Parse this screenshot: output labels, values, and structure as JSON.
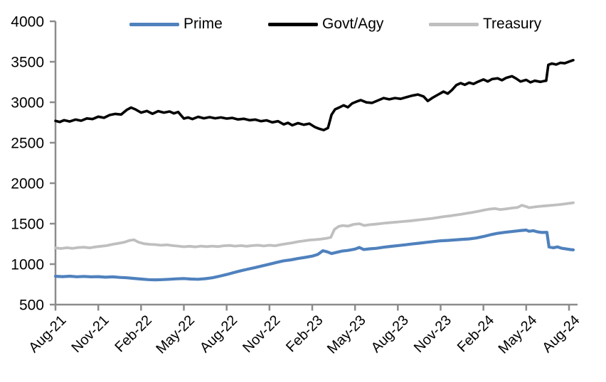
{
  "chart_data": {
    "type": "line",
    "title": "",
    "xlabel": "",
    "ylabel": "",
    "x_unit": "months since Aug-2021 (quarterly ticks)",
    "x_tick_labels": [
      "Aug-21",
      "Nov-21",
      "Feb-22",
      "May-22",
      "Aug-22",
      "Nov-22",
      "Feb-23",
      "May-23",
      "Aug-23",
      "Nov-23",
      "Feb-24",
      "May-24",
      "Aug-24"
    ],
    "y_ticks": [
      500,
      1000,
      1500,
      2000,
      2500,
      3000,
      3500,
      4000
    ],
    "ylim": [
      500,
      4000
    ],
    "grid": false,
    "legend_position": "top",
    "axis_color": "#8c8c8c",
    "tick_label_color": "#000000",
    "series": [
      {
        "name": "Prime",
        "color": "#4F81BD",
        "stroke_width": 4.2,
        "points": [
          [
            0,
            850
          ],
          [
            0.5,
            846
          ],
          [
            1,
            851
          ],
          [
            1.5,
            844
          ],
          [
            2,
            848
          ],
          [
            2.5,
            843
          ],
          [
            3,
            846
          ],
          [
            3.5,
            839
          ],
          [
            4,
            843
          ],
          [
            4.5,
            836
          ],
          [
            5,
            832
          ],
          [
            5.5,
            824
          ],
          [
            6,
            816
          ],
          [
            6.5,
            809
          ],
          [
            7,
            806
          ],
          [
            7.5,
            809
          ],
          [
            8,
            813
          ],
          [
            8.5,
            818
          ],
          [
            9,
            822
          ],
          [
            9.5,
            816
          ],
          [
            10,
            813
          ],
          [
            10.5,
            820
          ],
          [
            11,
            832
          ],
          [
            11.5,
            851
          ],
          [
            12,
            872
          ],
          [
            12.5,
            896
          ],
          [
            13,
            918
          ],
          [
            13.5,
            939
          ],
          [
            14,
            958
          ],
          [
            14.5,
            979
          ],
          [
            15,
            999
          ],
          [
            15.5,
            1021
          ],
          [
            16,
            1041
          ],
          [
            16.5,
            1053
          ],
          [
            17,
            1069
          ],
          [
            17.5,
            1083
          ],
          [
            18,
            1099
          ],
          [
            18.4,
            1121
          ],
          [
            18.75,
            1166
          ],
          [
            19.05,
            1152
          ],
          [
            19.35,
            1131
          ],
          [
            19.7,
            1146
          ],
          [
            20.1,
            1161
          ],
          [
            20.5,
            1169
          ],
          [
            21,
            1186
          ],
          [
            21.3,
            1206
          ],
          [
            21.6,
            1181
          ],
          [
            22,
            1189
          ],
          [
            22.5,
            1196
          ],
          [
            23,
            1209
          ],
          [
            23.5,
            1219
          ],
          [
            24,
            1229
          ],
          [
            24.5,
            1239
          ],
          [
            25,
            1249
          ],
          [
            25.5,
            1259
          ],
          [
            26,
            1269
          ],
          [
            26.5,
            1279
          ],
          [
            27,
            1289
          ],
          [
            27.5,
            1293
          ],
          [
            28,
            1299
          ],
          [
            28.5,
            1306
          ],
          [
            29,
            1311
          ],
          [
            29.5,
            1323
          ],
          [
            30,
            1341
          ],
          [
            30.5,
            1363
          ],
          [
            31,
            1381
          ],
          [
            31.5,
            1393
          ],
          [
            32,
            1403
          ],
          [
            32.5,
            1413
          ],
          [
            33,
            1421
          ],
          [
            33.2,
            1406
          ],
          [
            33.5,
            1413
          ],
          [
            33.8,
            1398
          ],
          [
            34.1,
            1391
          ],
          [
            34.45,
            1393
          ],
          [
            34.6,
            1212
          ],
          [
            34.9,
            1203
          ],
          [
            35.2,
            1213
          ],
          [
            35.5,
            1196
          ],
          [
            35.8,
            1188
          ],
          [
            36.1,
            1180
          ],
          [
            36.3,
            1176
          ]
        ]
      },
      {
        "name": "Govt/Agy",
        "color": "#000000",
        "stroke_width": 3.6,
        "points": [
          [
            0,
            2770
          ],
          [
            0.3,
            2756
          ],
          [
            0.6,
            2778
          ],
          [
            1,
            2762
          ],
          [
            1.4,
            2786
          ],
          [
            1.8,
            2772
          ],
          [
            2.2,
            2800
          ],
          [
            2.6,
            2792
          ],
          [
            3,
            2822
          ],
          [
            3.4,
            2808
          ],
          [
            3.8,
            2842
          ],
          [
            4.2,
            2856
          ],
          [
            4.6,
            2848
          ],
          [
            5,
            2906
          ],
          [
            5.3,
            2934
          ],
          [
            5.6,
            2912
          ],
          [
            6,
            2872
          ],
          [
            6.4,
            2892
          ],
          [
            6.8,
            2858
          ],
          [
            7.2,
            2890
          ],
          [
            7.6,
            2872
          ],
          [
            8,
            2886
          ],
          [
            8.3,
            2862
          ],
          [
            8.6,
            2880
          ],
          [
            9,
            2798
          ],
          [
            9.3,
            2812
          ],
          [
            9.6,
            2792
          ],
          [
            10,
            2820
          ],
          [
            10.4,
            2802
          ],
          [
            10.8,
            2816
          ],
          [
            11.2,
            2802
          ],
          [
            11.6,
            2812
          ],
          [
            12,
            2798
          ],
          [
            12.4,
            2806
          ],
          [
            12.8,
            2788
          ],
          [
            13.2,
            2796
          ],
          [
            13.6,
            2778
          ],
          [
            14,
            2786
          ],
          [
            14.4,
            2766
          ],
          [
            14.8,
            2776
          ],
          [
            15.2,
            2752
          ],
          [
            15.6,
            2766
          ],
          [
            16,
            2726
          ],
          [
            16.3,
            2746
          ],
          [
            16.6,
            2716
          ],
          [
            17,
            2742
          ],
          [
            17.4,
            2722
          ],
          [
            17.8,
            2736
          ],
          [
            18.2,
            2692
          ],
          [
            18.5,
            2672
          ],
          [
            18.8,
            2656
          ],
          [
            19.1,
            2682
          ],
          [
            19.35,
            2846
          ],
          [
            19.6,
            2912
          ],
          [
            19.9,
            2936
          ],
          [
            20.2,
            2962
          ],
          [
            20.5,
            2938
          ],
          [
            20.8,
            2986
          ],
          [
            21.1,
            3008
          ],
          [
            21.4,
            3026
          ],
          [
            21.8,
            2998
          ],
          [
            22.2,
            2992
          ],
          [
            22.6,
            3022
          ],
          [
            23,
            3052
          ],
          [
            23.4,
            3036
          ],
          [
            23.8,
            3052
          ],
          [
            24.2,
            3042
          ],
          [
            24.6,
            3062
          ],
          [
            25,
            3082
          ],
          [
            25.4,
            3096
          ],
          [
            25.8,
            3072
          ],
          [
            26.1,
            3016
          ],
          [
            26.4,
            3052
          ],
          [
            26.8,
            3092
          ],
          [
            27.2,
            3132
          ],
          [
            27.5,
            3106
          ],
          [
            27.8,
            3152
          ],
          [
            28.1,
            3212
          ],
          [
            28.4,
            3236
          ],
          [
            28.7,
            3216
          ],
          [
            29,
            3242
          ],
          [
            29.3,
            3226
          ],
          [
            29.6,
            3252
          ],
          [
            30,
            3282
          ],
          [
            30.3,
            3256
          ],
          [
            30.6,
            3286
          ],
          [
            31,
            3296
          ],
          [
            31.3,
            3272
          ],
          [
            31.6,
            3302
          ],
          [
            32,
            3322
          ],
          [
            32.3,
            3292
          ],
          [
            32.6,
            3256
          ],
          [
            33,
            3276
          ],
          [
            33.3,
            3246
          ],
          [
            33.6,
            3266
          ],
          [
            34,
            3252
          ],
          [
            34.25,
            3262
          ],
          [
            34.4,
            3266
          ],
          [
            34.55,
            3462
          ],
          [
            34.8,
            3478
          ],
          [
            35.1,
            3466
          ],
          [
            35.4,
            3488
          ],
          [
            35.7,
            3482
          ],
          [
            36,
            3502
          ],
          [
            36.3,
            3520
          ]
        ]
      },
      {
        "name": "Treasury",
        "color": "#BFBFBF",
        "stroke_width": 3.8,
        "points": [
          [
            0,
            1200
          ],
          [
            0.4,
            1193
          ],
          [
            0.8,
            1203
          ],
          [
            1.2,
            1195
          ],
          [
            1.6,
            1205
          ],
          [
            2,
            1209
          ],
          [
            2.4,
            1201
          ],
          [
            2.8,
            1213
          ],
          [
            3.2,
            1221
          ],
          [
            3.6,
            1229
          ],
          [
            4,
            1245
          ],
          [
            4.4,
            1257
          ],
          [
            4.8,
            1269
          ],
          [
            5.2,
            1293
          ],
          [
            5.5,
            1301
          ],
          [
            5.8,
            1273
          ],
          [
            6.2,
            1253
          ],
          [
            6.6,
            1245
          ],
          [
            7,
            1241
          ],
          [
            7.4,
            1233
          ],
          [
            7.8,
            1239
          ],
          [
            8.2,
            1229
          ],
          [
            8.6,
            1223
          ],
          [
            9,
            1215
          ],
          [
            9.4,
            1221
          ],
          [
            9.8,
            1213
          ],
          [
            10.2,
            1223
          ],
          [
            10.6,
            1217
          ],
          [
            11,
            1223
          ],
          [
            11.4,
            1217
          ],
          [
            11.8,
            1227
          ],
          [
            12.2,
            1231
          ],
          [
            12.6,
            1223
          ],
          [
            13,
            1229
          ],
          [
            13.4,
            1221
          ],
          [
            13.8,
            1229
          ],
          [
            14.2,
            1233
          ],
          [
            14.6,
            1225
          ],
          [
            15,
            1233
          ],
          [
            15.4,
            1227
          ],
          [
            15.8,
            1241
          ],
          [
            16.2,
            1253
          ],
          [
            16.6,
            1263
          ],
          [
            17,
            1277
          ],
          [
            17.4,
            1287
          ],
          [
            17.8,
            1297
          ],
          [
            18.2,
            1303
          ],
          [
            18.6,
            1309
          ],
          [
            19,
            1319
          ],
          [
            19.3,
            1331
          ],
          [
            19.55,
            1428
          ],
          [
            19.85,
            1466
          ],
          [
            20.15,
            1477
          ],
          [
            20.5,
            1469
          ],
          [
            20.9,
            1491
          ],
          [
            21.3,
            1499
          ],
          [
            21.65,
            1477
          ],
          [
            22,
            1487
          ],
          [
            22.4,
            1493
          ],
          [
            22.8,
            1501
          ],
          [
            23.2,
            1509
          ],
          [
            23.6,
            1515
          ],
          [
            24,
            1521
          ],
          [
            24.4,
            1527
          ],
          [
            24.8,
            1533
          ],
          [
            25.2,
            1541
          ],
          [
            25.6,
            1549
          ],
          [
            26,
            1557
          ],
          [
            26.4,
            1565
          ],
          [
            26.8,
            1575
          ],
          [
            27.2,
            1587
          ],
          [
            27.6,
            1595
          ],
          [
            28,
            1605
          ],
          [
            28.4,
            1615
          ],
          [
            28.8,
            1627
          ],
          [
            29.2,
            1639
          ],
          [
            29.6,
            1651
          ],
          [
            30,
            1667
          ],
          [
            30.4,
            1679
          ],
          [
            30.8,
            1687
          ],
          [
            31.2,
            1675
          ],
          [
            31.6,
            1683
          ],
          [
            32,
            1693
          ],
          [
            32.4,
            1701
          ],
          [
            32.7,
            1727
          ],
          [
            33,
            1711
          ],
          [
            33.2,
            1697
          ],
          [
            33.6,
            1707
          ],
          [
            34,
            1715
          ],
          [
            34.4,
            1721
          ],
          [
            34.8,
            1727
          ],
          [
            35.2,
            1733
          ],
          [
            35.6,
            1741
          ],
          [
            36,
            1751
          ],
          [
            36.3,
            1758
          ]
        ]
      }
    ]
  }
}
